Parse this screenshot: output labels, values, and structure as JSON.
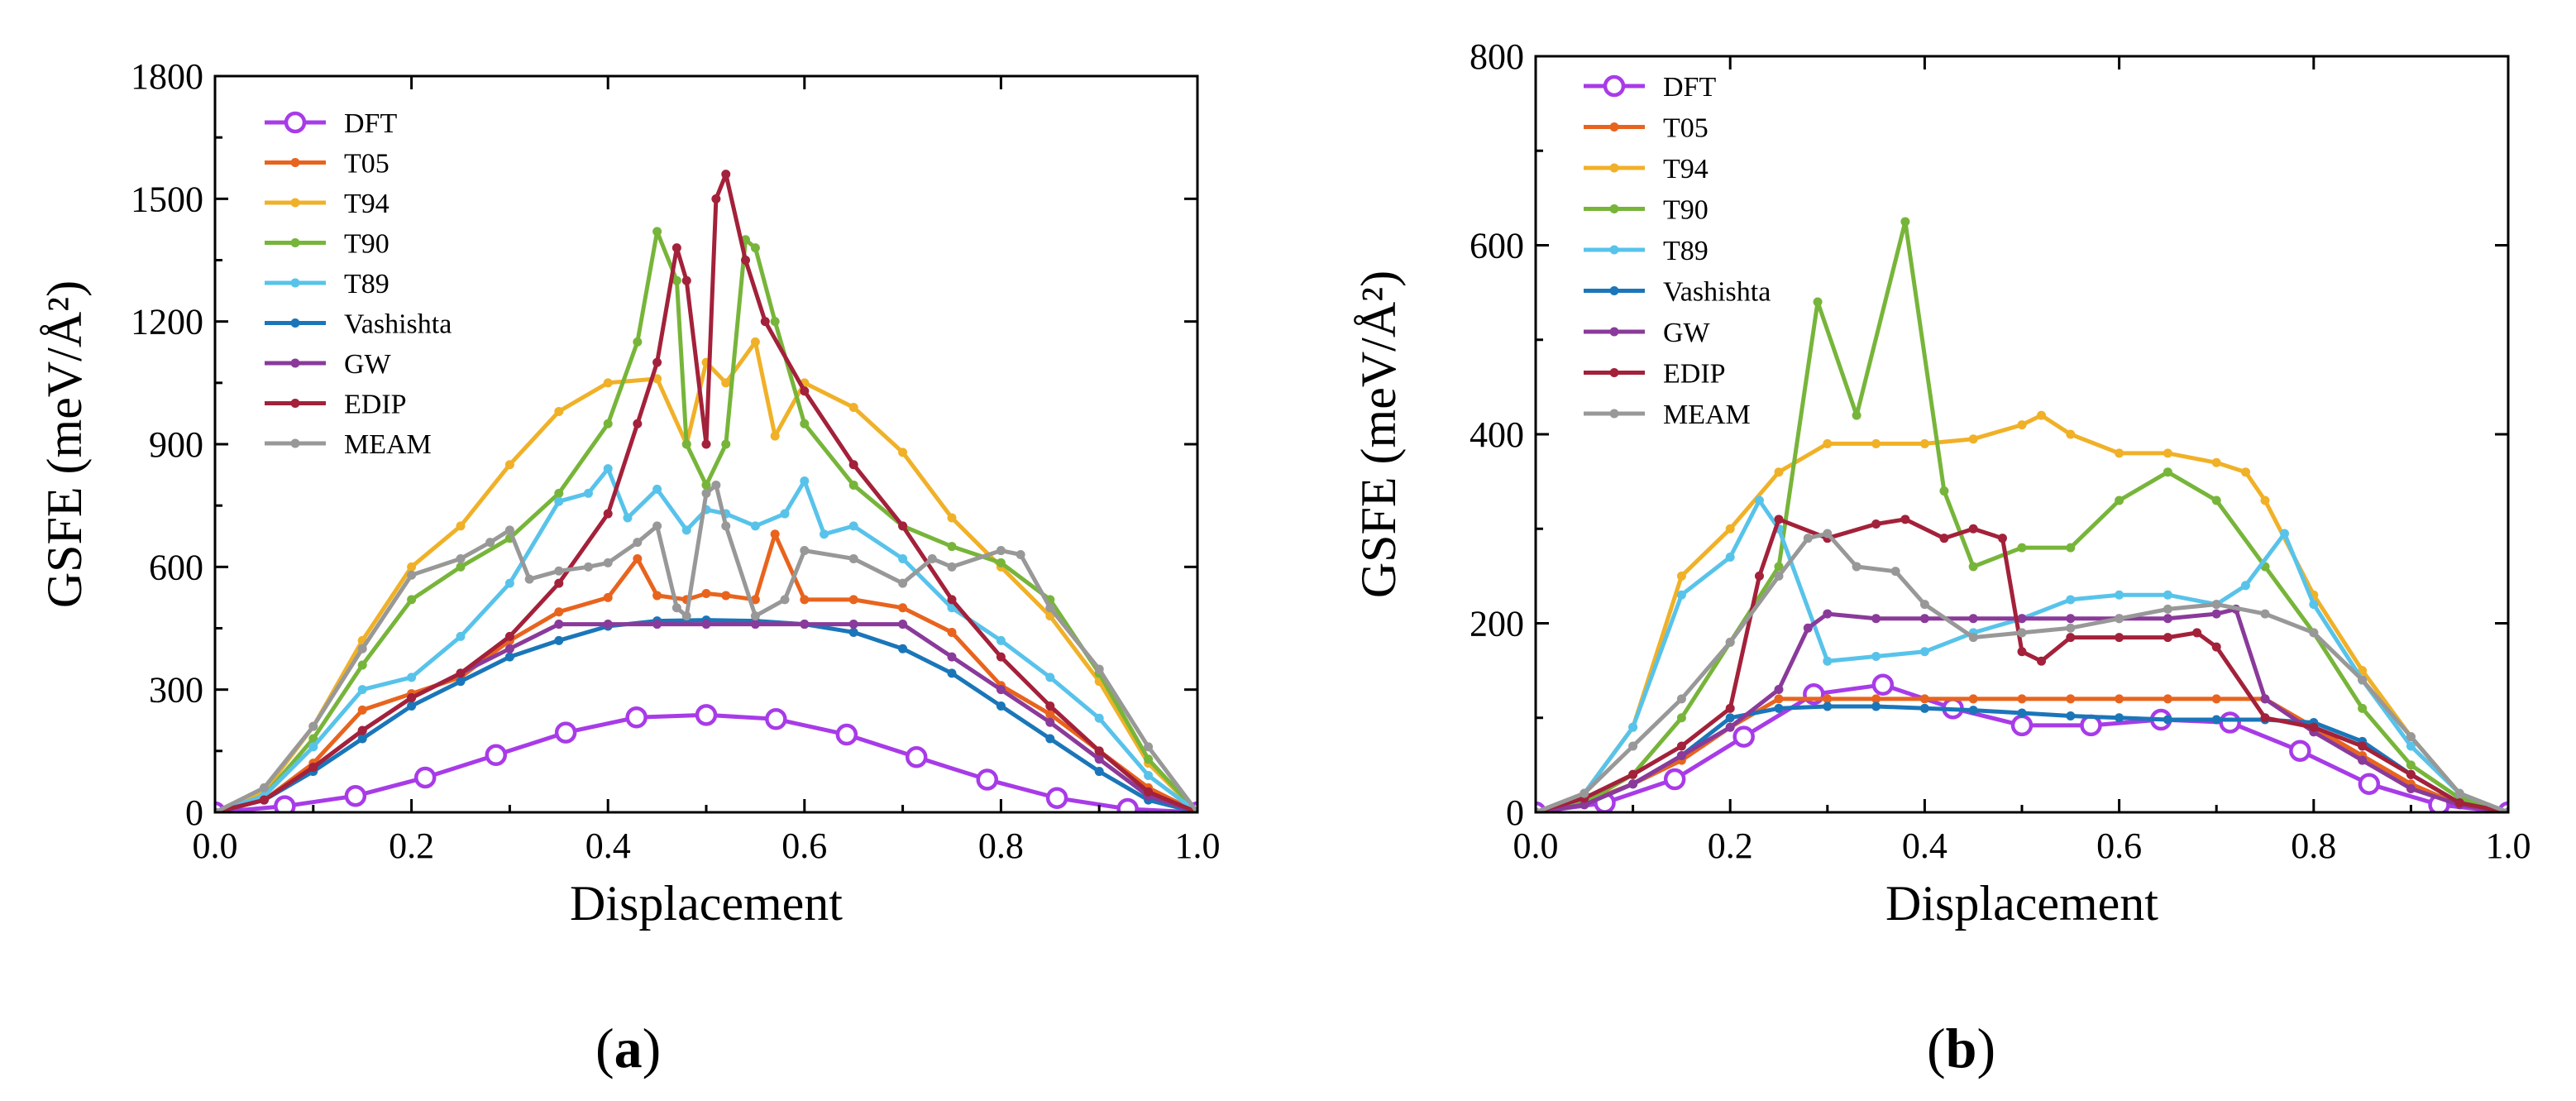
{
  "panels": [
    {
      "label_open": "(",
      "label_letter": "a",
      "label_close": ")"
    },
    {
      "label_open": "(",
      "label_letter": "b",
      "label_close": ")"
    }
  ],
  "colors": {
    "DFT": "#a83be8",
    "T05": "#e8641e",
    "T94": "#f0b128",
    "T90": "#77b53a",
    "T89": "#58c3ea",
    "Vashishta": "#1a76b9",
    "GW": "#8a3a9a",
    "EDIP": "#a3213a",
    "MEAM": "#989898"
  },
  "chart_data": [
    {
      "type": "line",
      "xlabel": "Displacement",
      "ylabel": "GSFE (meV/Å²)",
      "xlim": [
        0,
        1.0
      ],
      "ylim": [
        0,
        1800
      ],
      "xticks": [
        "0.0",
        "0.2",
        "0.4",
        "0.6",
        "0.8",
        "1.0"
      ],
      "yticks": [
        "0",
        "300",
        "600",
        "900",
        "1200",
        "1500",
        "1800"
      ],
      "legend_position": "top-left",
      "grid": false,
      "series": [
        {
          "name": "DFT",
          "marker": "open-circle",
          "x": [
            0,
            0.071,
            0.143,
            0.214,
            0.286,
            0.357,
            0.429,
            0.5,
            0.571,
            0.643,
            0.714,
            0.786,
            0.857,
            0.929,
            1.0
          ],
          "y": [
            0,
            15,
            40,
            85,
            140,
            195,
            232,
            238,
            228,
            190,
            135,
            80,
            35,
            8,
            0
          ]
        },
        {
          "name": "T05",
          "x": [
            0,
            0.05,
            0.1,
            0.15,
            0.2,
            0.25,
            0.3,
            0.35,
            0.4,
            0.43,
            0.45,
            0.48,
            0.5,
            0.52,
            0.55,
            0.57,
            0.6,
            0.65,
            0.7,
            0.75,
            0.8,
            0.85,
            0.9,
            0.95,
            1.0
          ],
          "y": [
            0,
            30,
            120,
            250,
            290,
            330,
            420,
            490,
            525,
            620,
            530,
            520,
            535,
            530,
            520,
            680,
            520,
            520,
            500,
            440,
            310,
            240,
            150,
            60,
            0
          ]
        },
        {
          "name": "T94",
          "x": [
            0,
            0.05,
            0.1,
            0.15,
            0.2,
            0.25,
            0.3,
            0.35,
            0.4,
            0.45,
            0.48,
            0.5,
            0.52,
            0.55,
            0.57,
            0.6,
            0.65,
            0.7,
            0.75,
            0.8,
            0.85,
            0.9,
            0.95,
            1.0
          ],
          "y": [
            0,
            50,
            210,
            420,
            600,
            700,
            850,
            980,
            1050,
            1060,
            900,
            1100,
            1050,
            1150,
            920,
            1050,
            990,
            880,
            720,
            600,
            480,
            320,
            120,
            0
          ]
        },
        {
          "name": "T90",
          "x": [
            0,
            0.05,
            0.1,
            0.15,
            0.2,
            0.25,
            0.3,
            0.35,
            0.4,
            0.43,
            0.45,
            0.47,
            0.48,
            0.5,
            0.52,
            0.54,
            0.55,
            0.57,
            0.6,
            0.65,
            0.7,
            0.75,
            0.8,
            0.85,
            0.9,
            0.95,
            1.0
          ],
          "y": [
            0,
            40,
            180,
            360,
            520,
            600,
            670,
            780,
            950,
            1150,
            1420,
            1300,
            900,
            800,
            900,
            1400,
            1380,
            1200,
            950,
            800,
            700,
            650,
            610,
            520,
            340,
            130,
            0
          ]
        },
        {
          "name": "T89",
          "x": [
            0,
            0.05,
            0.1,
            0.15,
            0.2,
            0.25,
            0.3,
            0.35,
            0.38,
            0.4,
            0.42,
            0.45,
            0.48,
            0.5,
            0.52,
            0.55,
            0.58,
            0.6,
            0.62,
            0.65,
            0.7,
            0.75,
            0.8,
            0.85,
            0.9,
            0.95,
            1.0
          ],
          "y": [
            0,
            40,
            160,
            300,
            330,
            430,
            560,
            760,
            780,
            840,
            720,
            790,
            690,
            740,
            730,
            700,
            730,
            810,
            680,
            700,
            620,
            500,
            420,
            330,
            230,
            90,
            0
          ]
        },
        {
          "name": "Vashishta",
          "x": [
            0,
            0.05,
            0.1,
            0.15,
            0.2,
            0.25,
            0.3,
            0.35,
            0.4,
            0.45,
            0.5,
            0.55,
            0.6,
            0.65,
            0.7,
            0.75,
            0.8,
            0.85,
            0.9,
            0.95,
            1.0
          ],
          "y": [
            0,
            30,
            100,
            180,
            260,
            320,
            380,
            420,
            455,
            468,
            470,
            468,
            460,
            440,
            400,
            340,
            260,
            180,
            100,
            30,
            0
          ]
        },
        {
          "name": "GW",
          "x": [
            0,
            0.05,
            0.1,
            0.15,
            0.2,
            0.25,
            0.3,
            0.35,
            0.4,
            0.45,
            0.5,
            0.55,
            0.6,
            0.65,
            0.7,
            0.75,
            0.8,
            0.85,
            0.9,
            0.95,
            1.0
          ],
          "y": [
            0,
            30,
            110,
            200,
            280,
            340,
            400,
            460,
            460,
            460,
            460,
            460,
            460,
            460,
            460,
            380,
            300,
            220,
            130,
            40,
            0
          ]
        },
        {
          "name": "EDIP",
          "x": [
            0,
            0.05,
            0.1,
            0.15,
            0.2,
            0.25,
            0.3,
            0.35,
            0.4,
            0.43,
            0.45,
            0.47,
            0.48,
            0.5,
            0.51,
            0.52,
            0.54,
            0.56,
            0.6,
            0.65,
            0.7,
            0.75,
            0.8,
            0.85,
            0.9,
            0.95,
            1.0
          ],
          "y": [
            0,
            30,
            110,
            200,
            280,
            340,
            430,
            560,
            730,
            950,
            1100,
            1380,
            1300,
            900,
            1500,
            1560,
            1350,
            1200,
            1030,
            850,
            700,
            520,
            380,
            260,
            150,
            50,
            0
          ]
        },
        {
          "name": "MEAM",
          "x": [
            0,
            0.05,
            0.1,
            0.15,
            0.2,
            0.25,
            0.28,
            0.3,
            0.32,
            0.35,
            0.38,
            0.4,
            0.43,
            0.45,
            0.47,
            0.48,
            0.5,
            0.51,
            0.52,
            0.55,
            0.58,
            0.6,
            0.65,
            0.7,
            0.73,
            0.75,
            0.8,
            0.82,
            0.85,
            0.9,
            0.95,
            1.0
          ],
          "y": [
            0,
            60,
            210,
            400,
            580,
            620,
            660,
            690,
            570,
            590,
            600,
            610,
            660,
            700,
            500,
            480,
            780,
            800,
            700,
            480,
            520,
            640,
            620,
            560,
            620,
            600,
            640,
            630,
            500,
            350,
            160,
            0
          ]
        }
      ]
    },
    {
      "type": "line",
      "xlabel": "Displacement",
      "ylabel": "GSFE (meV/Å²)",
      "xlim": [
        0,
        1.0
      ],
      "ylim": [
        0,
        800
      ],
      "xticks": [
        "0.0",
        "0.2",
        "0.4",
        "0.6",
        "0.8",
        "1.0"
      ],
      "yticks": [
        "0",
        "200",
        "400",
        "600",
        "800"
      ],
      "legend_position": "top-left",
      "grid": false,
      "series": [
        {
          "name": "DFT",
          "marker": "open-circle",
          "x": [
            0,
            0.071,
            0.143,
            0.214,
            0.286,
            0.357,
            0.429,
            0.5,
            0.571,
            0.643,
            0.714,
            0.786,
            0.857,
            0.929,
            1.0
          ],
          "y": [
            0,
            10,
            35,
            80,
            125,
            135,
            110,
            92,
            92,
            98,
            95,
            65,
            30,
            8,
            0
          ]
        },
        {
          "name": "T05",
          "x": [
            0,
            0.05,
            0.1,
            0.15,
            0.2,
            0.25,
            0.3,
            0.35,
            0.4,
            0.45,
            0.5,
            0.55,
            0.6,
            0.65,
            0.7,
            0.75,
            0.8,
            0.85,
            0.9,
            0.95,
            1.0
          ],
          "y": [
            0,
            10,
            30,
            55,
            90,
            120,
            120,
            120,
            120,
            120,
            120,
            120,
            120,
            120,
            120,
            120,
            90,
            60,
            30,
            8,
            0
          ]
        },
        {
          "name": "T94",
          "x": [
            0,
            0.05,
            0.1,
            0.15,
            0.2,
            0.25,
            0.3,
            0.35,
            0.4,
            0.45,
            0.5,
            0.52,
            0.55,
            0.6,
            0.65,
            0.7,
            0.73,
            0.75,
            0.8,
            0.85,
            0.9,
            0.95,
            1.0
          ],
          "y": [
            0,
            20,
            90,
            250,
            300,
            360,
            390,
            390,
            390,
            395,
            410,
            420,
            400,
            380,
            380,
            370,
            360,
            330,
            230,
            150,
            80,
            20,
            0
          ]
        },
        {
          "name": "T90",
          "x": [
            0,
            0.05,
            0.1,
            0.15,
            0.2,
            0.25,
            0.29,
            0.33,
            0.38,
            0.42,
            0.45,
            0.5,
            0.55,
            0.6,
            0.65,
            0.7,
            0.75,
            0.8,
            0.85,
            0.9,
            0.95,
            1.0
          ],
          "y": [
            0,
            10,
            40,
            100,
            180,
            260,
            540,
            420,
            625,
            340,
            260,
            280,
            280,
            330,
            360,
            330,
            260,
            190,
            110,
            50,
            15,
            0
          ]
        },
        {
          "name": "T89",
          "x": [
            0,
            0.05,
            0.1,
            0.15,
            0.2,
            0.23,
            0.25,
            0.3,
            0.35,
            0.4,
            0.45,
            0.5,
            0.55,
            0.6,
            0.65,
            0.7,
            0.73,
            0.77,
            0.8,
            0.85,
            0.9,
            0.95,
            1.0
          ],
          "y": [
            0,
            20,
            90,
            230,
            270,
            330,
            300,
            160,
            165,
            170,
            190,
            205,
            225,
            230,
            230,
            220,
            240,
            295,
            220,
            140,
            70,
            20,
            0
          ]
        },
        {
          "name": "Vashishta",
          "x": [
            0,
            0.05,
            0.1,
            0.15,
            0.2,
            0.25,
            0.3,
            0.35,
            0.4,
            0.45,
            0.5,
            0.55,
            0.6,
            0.65,
            0.7,
            0.75,
            0.8,
            0.85,
            0.9,
            0.95,
            1.0
          ],
          "y": [
            0,
            8,
            30,
            60,
            100,
            110,
            112,
            112,
            110,
            108,
            105,
            102,
            100,
            98,
            98,
            98,
            95,
            75,
            40,
            10,
            0
          ]
        },
        {
          "name": "GW",
          "x": [
            0,
            0.05,
            0.1,
            0.15,
            0.2,
            0.25,
            0.28,
            0.3,
            0.35,
            0.4,
            0.45,
            0.5,
            0.55,
            0.6,
            0.65,
            0.7,
            0.72,
            0.75,
            0.8,
            0.85,
            0.9,
            0.95,
            1.0
          ],
          "y": [
            0,
            8,
            30,
            60,
            90,
            130,
            195,
            210,
            205,
            205,
            205,
            205,
            205,
            205,
            205,
            210,
            215,
            120,
            85,
            55,
            25,
            8,
            0
          ]
        },
        {
          "name": "EDIP",
          "x": [
            0,
            0.05,
            0.1,
            0.15,
            0.2,
            0.23,
            0.25,
            0.3,
            0.35,
            0.38,
            0.42,
            0.45,
            0.48,
            0.5,
            0.52,
            0.55,
            0.6,
            0.65,
            0.68,
            0.7,
            0.75,
            0.8,
            0.85,
            0.9,
            0.95,
            1.0
          ],
          "y": [
            0,
            15,
            40,
            70,
            110,
            250,
            310,
            290,
            305,
            310,
            290,
            300,
            290,
            170,
            160,
            185,
            185,
            185,
            190,
            175,
            100,
            90,
            70,
            40,
            10,
            0
          ]
        },
        {
          "name": "MEAM",
          "x": [
            0,
            0.05,
            0.1,
            0.15,
            0.2,
            0.25,
            0.28,
            0.3,
            0.33,
            0.37,
            0.4,
            0.45,
            0.5,
            0.55,
            0.6,
            0.65,
            0.7,
            0.75,
            0.8,
            0.85,
            0.9,
            0.95,
            1.0
          ],
          "y": [
            0,
            20,
            70,
            120,
            180,
            250,
            290,
            295,
            260,
            255,
            220,
            185,
            190,
            195,
            205,
            215,
            220,
            210,
            190,
            140,
            80,
            20,
            0
          ]
        }
      ]
    }
  ]
}
